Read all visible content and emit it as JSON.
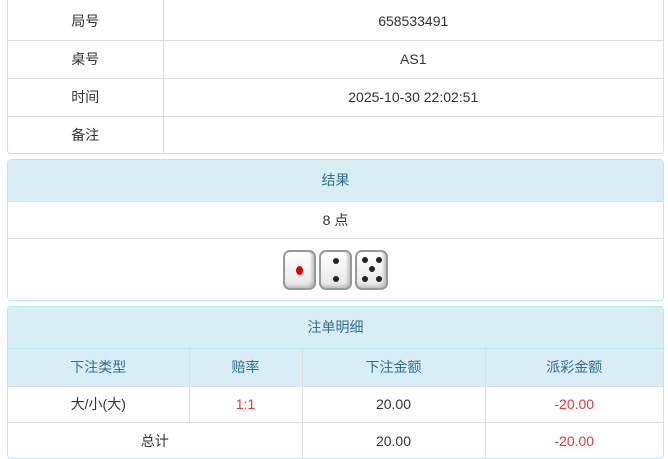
{
  "info": [
    {
      "label": "局号",
      "value": "658533491"
    },
    {
      "label": "桌号",
      "value": "AS1"
    },
    {
      "label": "时间",
      "value": "2025-10-30 22:02:51"
    },
    {
      "label": "备注",
      "value": ""
    }
  ],
  "result": {
    "title": "结果",
    "points": "8 点",
    "dice": [
      1,
      2,
      5
    ]
  },
  "bets": {
    "title": "注单明细",
    "headers": [
      "下注类型",
      "赔率",
      "下注金额",
      "派彩金额"
    ],
    "rows": [
      {
        "type": "大/小(大)",
        "odds": "1:1",
        "amount": "20.00",
        "payout": "-20.00"
      }
    ],
    "total": {
      "label": "总计",
      "amount": "20.00",
      "payout": "-20.00"
    }
  },
  "colors": {
    "header_bg": "#d9edf7",
    "header_text": "#31708f",
    "negative": "#e4393c"
  }
}
